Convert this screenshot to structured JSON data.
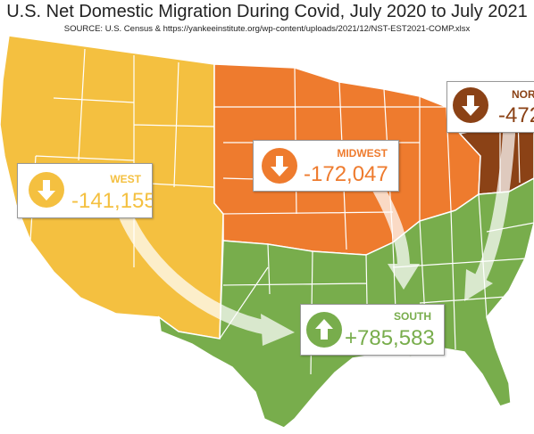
{
  "title": "U.S. Net Domestic Migration During Covid, July 2020 to July 2021",
  "source": "SOURCE: U.S. Census & https://yankeeinstitute.org/wp-content/uploads/2021/12/NST-EST2021-COMP.xlsx",
  "colors": {
    "west": "#F4C040",
    "midwest": "#EE7B2E",
    "northeast": "#8B4216",
    "south": "#78AD4C",
    "borders": "#ffffff",
    "arrows": "#ffffff"
  },
  "regions": {
    "west": {
      "name": "WEST",
      "value": "-141,155",
      "direction": "down",
      "icon": "arrow-down-icon"
    },
    "midwest": {
      "name": "MIDWEST",
      "value": "-172,047",
      "direction": "down",
      "icon": "arrow-down-icon"
    },
    "northeast": {
      "name": "NOR",
      "value": "-472",
      "direction": "down",
      "icon": "arrow-down-icon"
    },
    "south": {
      "name": "SOUTH",
      "value": "+785,583",
      "direction": "up",
      "icon": "arrow-up-icon"
    }
  }
}
